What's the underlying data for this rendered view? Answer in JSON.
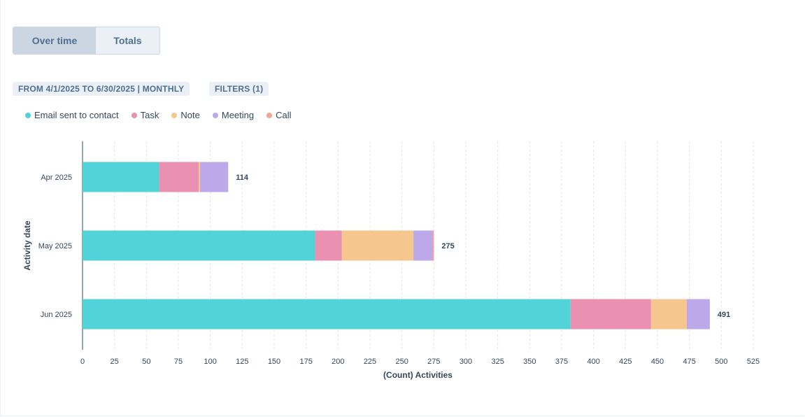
{
  "toggle": {
    "over_time": "Over time",
    "totals": "Totals"
  },
  "chips": {
    "date_range": "FROM 4/1/2025 TO 6/30/2025 | MONTHLY",
    "filters": "FILTERS (1)"
  },
  "colors": {
    "email": "#51d3d9",
    "task": "#ea90b1",
    "note": "#f5c78e",
    "meeting": "#bda9ea",
    "call": "#f2a58e",
    "grid": "#dfe3eb",
    "axis": "#33475b"
  },
  "chart_data": {
    "type": "bar",
    "orientation": "horizontal",
    "stacked": true,
    "categories": [
      "Apr 2025",
      "May 2025",
      "Jun 2025"
    ],
    "series": [
      {
        "name": "Email sent to contact",
        "color": "#51d3d9",
        "values": [
          60,
          182,
          382
        ]
      },
      {
        "name": "Task",
        "color": "#ea90b1",
        "values": [
          31,
          21,
          63
        ]
      },
      {
        "name": "Note",
        "color": "#f5c78e",
        "values": [
          1,
          56,
          28
        ]
      },
      {
        "name": "Meeting",
        "color": "#bda9ea",
        "values": [
          22,
          15,
          18
        ]
      },
      {
        "name": "Call",
        "color": "#f2a58e",
        "values": [
          0,
          1,
          0
        ]
      }
    ],
    "totals": [
      "114",
      "275",
      "491"
    ],
    "xlabel": "(Count) Activities",
    "ylabel": "Activity date",
    "xlim": [
      0,
      525
    ],
    "xticks": [
      0,
      25,
      50,
      75,
      100,
      125,
      150,
      175,
      200,
      225,
      250,
      275,
      300,
      325,
      350,
      375,
      400,
      425,
      450,
      475,
      500,
      525
    ],
    "grid": true,
    "legend": "top-left"
  }
}
